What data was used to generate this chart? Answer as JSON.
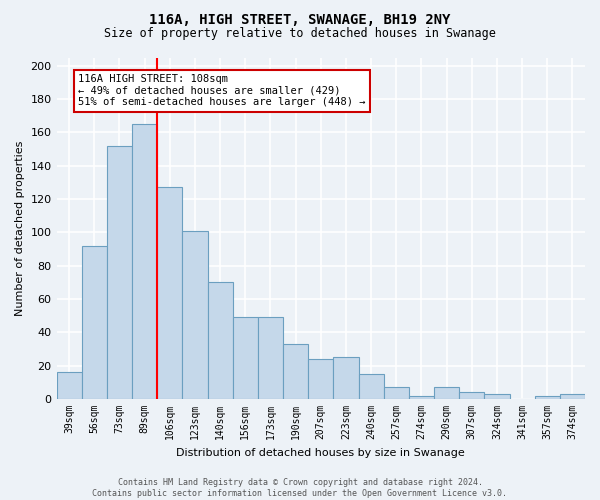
{
  "title": "116A, HIGH STREET, SWANAGE, BH19 2NY",
  "subtitle": "Size of property relative to detached houses in Swanage",
  "xlabel": "Distribution of detached houses by size in Swanage",
  "ylabel": "Number of detached properties",
  "categories": [
    "39sqm",
    "56sqm",
    "73sqm",
    "89sqm",
    "106sqm",
    "123sqm",
    "140sqm",
    "156sqm",
    "173sqm",
    "190sqm",
    "207sqm",
    "223sqm",
    "240sqm",
    "257sqm",
    "274sqm",
    "290sqm",
    "307sqm",
    "324sqm",
    "341sqm",
    "357sqm",
    "374sqm"
  ],
  "values": [
    16,
    92,
    152,
    165,
    127,
    101,
    70,
    49,
    49,
    33,
    24,
    25,
    15,
    7,
    2,
    7,
    4,
    3,
    0,
    2,
    3
  ],
  "bar_color": "#c5d8ea",
  "bar_edge_color": "#6b9fc0",
  "red_line_x": 3.5,
  "annotation_text": "116A HIGH STREET: 108sqm\n← 49% of detached houses are smaller (429)\n51% of semi-detached houses are larger (448) →",
  "annotation_box_color": "#ffffff",
  "annotation_box_edge_color": "#cc0000",
  "footer_text": "Contains HM Land Registry data © Crown copyright and database right 2024.\nContains public sector information licensed under the Open Government Licence v3.0.",
  "background_color": "#edf2f7",
  "grid_color": "#ffffff",
  "ylim": [
    0,
    205
  ]
}
